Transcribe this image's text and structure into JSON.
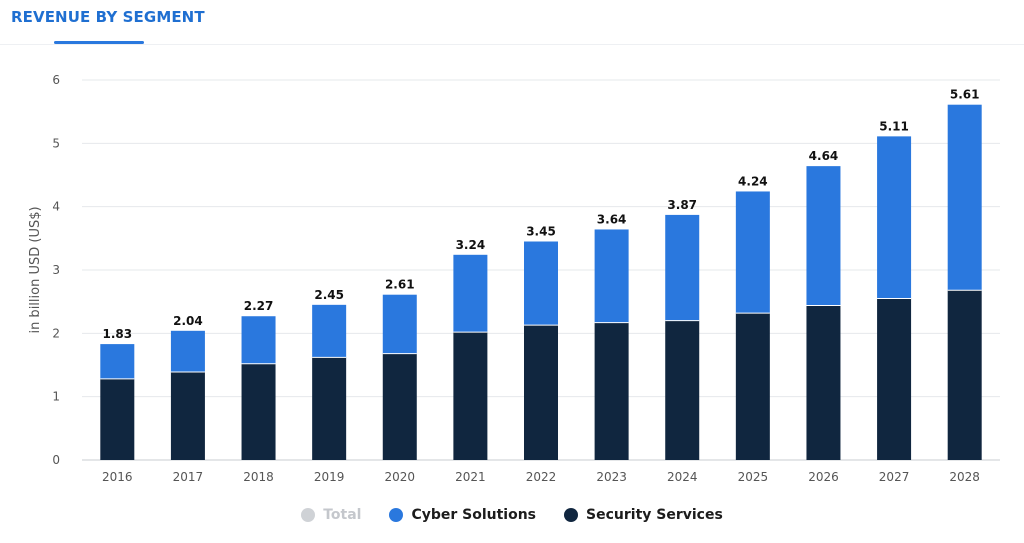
{
  "header": {
    "title": "REVENUE BY SEGMENT"
  },
  "colors": {
    "cyber": "#2a78de",
    "security": "#10263f",
    "total_muted": "#cfd2d6",
    "grid": "#e6e8eb",
    "axis_text": "#555555"
  },
  "legend": [
    {
      "label": "Total",
      "color": "#cfd2d6",
      "muted": true
    },
    {
      "label": "Cyber Solutions",
      "color": "#2a78de",
      "muted": false
    },
    {
      "label": "Security Services",
      "color": "#10263f",
      "muted": false
    }
  ],
  "chart_data": {
    "type": "bar",
    "stacked": true,
    "ylabel": "in billion USD (US$)",
    "ylim": [
      0,
      6
    ],
    "yticks": [
      0,
      1,
      2,
      3,
      4,
      5,
      6
    ],
    "grid": true,
    "legend_position": "bottom",
    "categories": [
      "2016",
      "2017",
      "2018",
      "2019",
      "2020",
      "2021",
      "2022",
      "2023",
      "2024",
      "2025",
      "2026",
      "2027",
      "2028"
    ],
    "series": [
      {
        "name": "Security Services",
        "values": [
          1.28,
          1.39,
          1.52,
          1.62,
          1.68,
          2.02,
          2.13,
          2.17,
          2.2,
          2.32,
          2.44,
          2.55,
          2.68
        ]
      },
      {
        "name": "Cyber Solutions",
        "values": [
          0.55,
          0.65,
          0.75,
          0.83,
          0.93,
          1.22,
          1.32,
          1.47,
          1.67,
          1.92,
          2.2,
          2.56,
          2.93
        ]
      }
    ],
    "totals": [
      "1.83",
      "2.04",
      "2.27",
      "2.45",
      "2.61",
      "3.24",
      "3.45",
      "3.64",
      "3.87",
      "4.24",
      "4.64",
      "5.11",
      "5.61"
    ]
  }
}
